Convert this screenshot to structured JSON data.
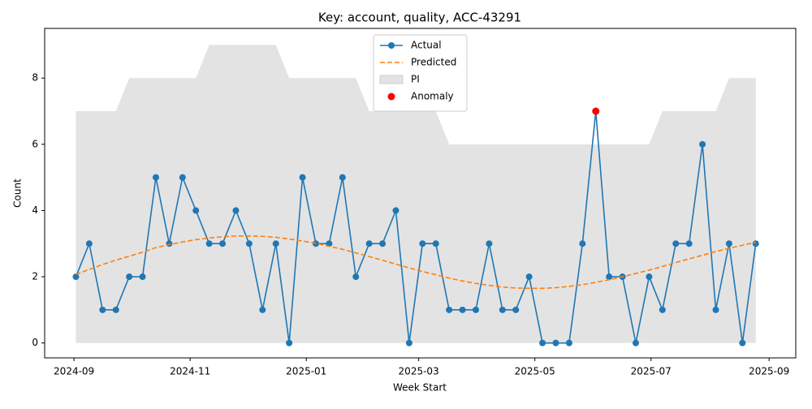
{
  "chart_data": {
    "type": "line",
    "title": "Key: account, quality, ACC-43291",
    "x_label": "Week Start",
    "y_label": "Count",
    "x": [
      1,
      8,
      15,
      22,
      29,
      36,
      43,
      50,
      57,
      64,
      71,
      78,
      85,
      92,
      99,
      106,
      113,
      120,
      127,
      134,
      141,
      148,
      155,
      162,
      169,
      176,
      183,
      190,
      197,
      204,
      211,
      218,
      225,
      232,
      239,
      246,
      253,
      260,
      267,
      274,
      281,
      288,
      295,
      302,
      309,
      316,
      323,
      330,
      337,
      344,
      351,
      358
    ],
    "xlim": [
      -15.4,
      379
    ],
    "xticks": [
      {
        "value": 0,
        "label": "2024-09"
      },
      {
        "value": 61,
        "label": "2024-11"
      },
      {
        "value": 122,
        "label": "2025-01"
      },
      {
        "value": 181,
        "label": "2025-03"
      },
      {
        "value": 242,
        "label": "2025-05"
      },
      {
        "value": 303,
        "label": "2025-07"
      },
      {
        "value": 365,
        "label": "2025-09"
      }
    ],
    "ylim": [
      -0.45,
      9.5
    ],
    "yticks": [
      0,
      2,
      4,
      6,
      8
    ],
    "grid": false,
    "legend": "upper center",
    "series": [
      {
        "name": "Actual",
        "type": "line",
        "color": "#1f77b4",
        "marker": true,
        "values": [
          2,
          3,
          1,
          1,
          2,
          2,
          5,
          3,
          5,
          4,
          3,
          3,
          4,
          3,
          1,
          3,
          0,
          5,
          3,
          3,
          5,
          2,
          3,
          3,
          4,
          0,
          3,
          3,
          1,
          1,
          1,
          3,
          1,
          1,
          2,
          0,
          0,
          0,
          3,
          7,
          2,
          2,
          0,
          2,
          1,
          3,
          3,
          6,
          1,
          3,
          0,
          3
        ]
      },
      {
        "name": "Predicted",
        "type": "line",
        "color": "#ff7f0e",
        "linestyle": "dashed",
        "values": [
          2.07,
          2.22,
          2.37,
          2.5,
          2.62,
          2.74,
          2.88,
          2.97,
          3.05,
          3.12,
          3.17,
          3.21,
          3.23,
          3.23,
          3.22,
          3.19,
          3.14,
          3.08,
          3.01,
          2.92,
          2.83,
          2.72,
          2.61,
          2.5,
          2.38,
          2.27,
          2.16,
          2.06,
          1.96,
          1.87,
          1.8,
          1.74,
          1.69,
          1.66,
          1.65,
          1.65,
          1.67,
          1.71,
          1.76,
          1.83,
          1.91,
          2.0,
          2.1,
          2.2,
          2.31,
          2.43,
          2.54,
          2.65,
          2.76,
          2.86,
          2.95,
          3.04
        ]
      },
      {
        "name": "PI",
        "type": "band",
        "color": "#e3e3e3",
        "lower": [
          0,
          0,
          0,
          0,
          0,
          0,
          0,
          0,
          0,
          0,
          0,
          0,
          0,
          0,
          0,
          0,
          0,
          0,
          0,
          0,
          0,
          0,
          0,
          0,
          0,
          0,
          0,
          0,
          0,
          0,
          0,
          0,
          0,
          0,
          0,
          0,
          0,
          0,
          0,
          0,
          0,
          0,
          0,
          0,
          0,
          0,
          0,
          0,
          0,
          0,
          0,
          0
        ],
        "upper": [
          7,
          7,
          7,
          7,
          8,
          8,
          8,
          8,
          8,
          8,
          9,
          9,
          9,
          9,
          9,
          9,
          8,
          8,
          8,
          8,
          8,
          8,
          7,
          7,
          7,
          7,
          7,
          7,
          6,
          6,
          6,
          6,
          6,
          6,
          6,
          6,
          6,
          6,
          6,
          6,
          6,
          6,
          6,
          6,
          7,
          7,
          7,
          7,
          7,
          8,
          8,
          8
        ]
      },
      {
        "name": "Anomaly",
        "type": "scatter",
        "color": "#ff0000",
        "x": [
          274
        ],
        "values": [
          7
        ]
      }
    ]
  }
}
